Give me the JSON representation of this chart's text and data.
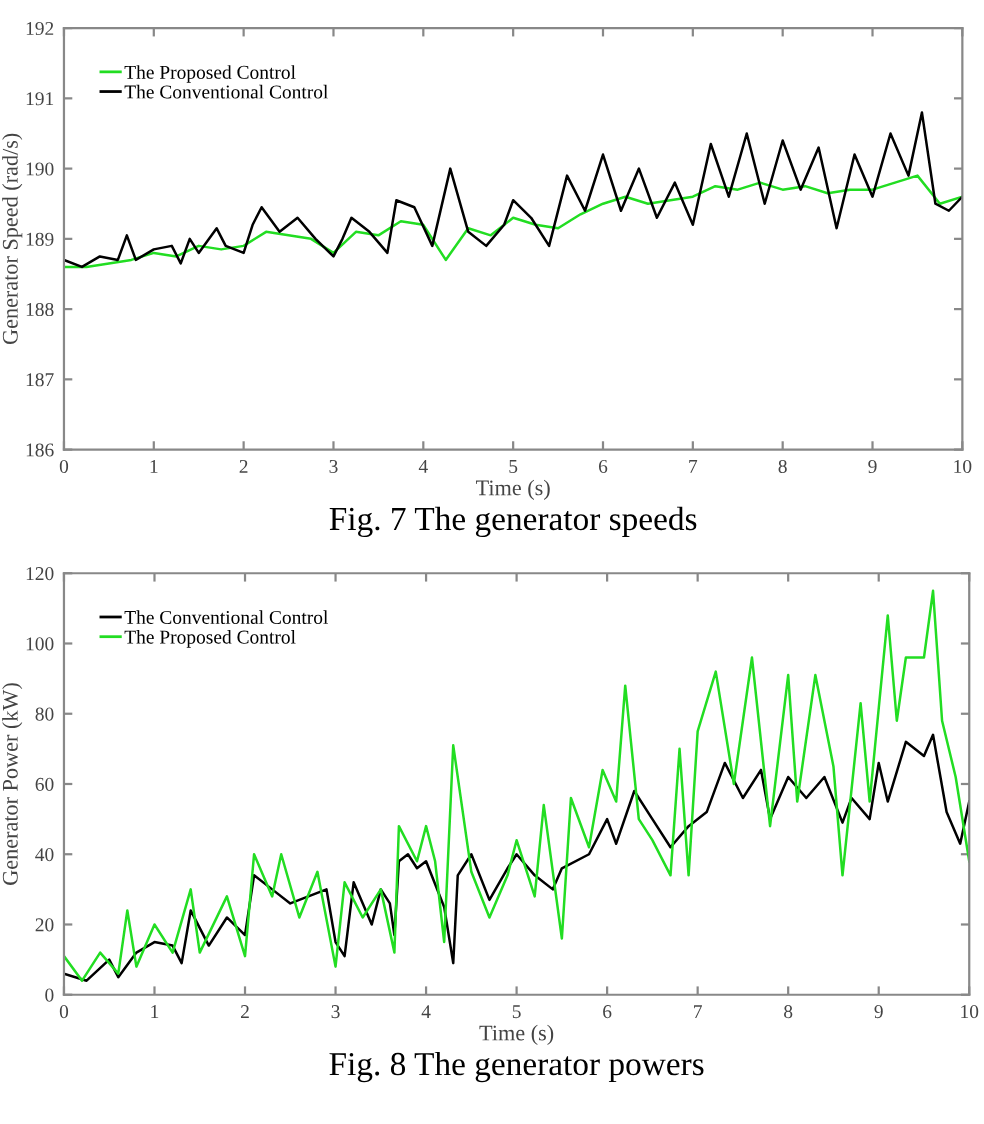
{
  "chart_data": [
    {
      "type": "line",
      "title": "Fig. 7 The generator speeds",
      "xlabel": "Time (s)",
      "ylabel": "Generator Speed (rad/s)",
      "xlim": [
        0,
        10
      ],
      "ylim": [
        186,
        192
      ],
      "xticks": [
        0,
        1,
        2,
        3,
        4,
        5,
        6,
        7,
        8,
        9,
        10
      ],
      "yticks": [
        186,
        187,
        188,
        189,
        190,
        191,
        192
      ],
      "grid": false,
      "legend": "top left",
      "marker": "none",
      "line_style": "solid",
      "series": [
        {
          "name": "The Proposed Control",
          "color": "#22dd22",
          "x": [
            0,
            0.25,
            0.5,
            0.75,
            1,
            1.25,
            1.5,
            1.75,
            2,
            2.25,
            2.5,
            2.75,
            3,
            3.25,
            3.5,
            3.75,
            4,
            4.25,
            4.5,
            4.75,
            5,
            5.25,
            5.5,
            5.75,
            6,
            6.25,
            6.5,
            6.75,
            7,
            7.25,
            7.5,
            7.75,
            8,
            8.25,
            8.5,
            8.75,
            9,
            9.25,
            9.5,
            9.75,
            10
          ],
          "values": [
            188.6,
            188.6,
            188.65,
            188.7,
            188.8,
            188.75,
            188.9,
            188.85,
            188.9,
            189.1,
            189.05,
            189.0,
            188.8,
            189.1,
            189.05,
            189.25,
            189.2,
            188.7,
            189.15,
            189.05,
            189.3,
            189.2,
            189.15,
            189.35,
            189.5,
            189.6,
            189.5,
            189.55,
            189.6,
            189.75,
            189.7,
            189.8,
            189.7,
            189.75,
            189.65,
            189.7,
            189.7,
            189.8,
            189.9,
            189.5,
            189.6
          ]
        },
        {
          "name": "The Conventional Control",
          "color": "#000000",
          "x": [
            0,
            0.2,
            0.4,
            0.6,
            0.7,
            0.8,
            1.0,
            1.2,
            1.3,
            1.4,
            1.5,
            1.7,
            1.8,
            2.0,
            2.1,
            2.2,
            2.4,
            2.6,
            2.8,
            3.0,
            3.1,
            3.2,
            3.4,
            3.6,
            3.7,
            3.9,
            4.1,
            4.3,
            4.5,
            4.7,
            4.9,
            5.0,
            5.2,
            5.4,
            5.6,
            5.8,
            6.0,
            6.2,
            6.4,
            6.6,
            6.8,
            7.0,
            7.2,
            7.4,
            7.6,
            7.8,
            8.0,
            8.2,
            8.4,
            8.6,
            8.8,
            9.0,
            9.2,
            9.4,
            9.55,
            9.7,
            9.85,
            10
          ],
          "values": [
            188.7,
            188.6,
            188.75,
            188.7,
            189.05,
            188.7,
            188.85,
            188.9,
            188.65,
            189.0,
            188.8,
            189.15,
            188.9,
            188.8,
            189.2,
            189.45,
            189.1,
            189.3,
            189.0,
            188.75,
            189.0,
            189.3,
            189.1,
            188.8,
            189.55,
            189.45,
            188.9,
            190.0,
            189.1,
            188.9,
            189.2,
            189.55,
            189.3,
            188.9,
            189.9,
            189.4,
            190.2,
            189.4,
            190.0,
            189.3,
            189.8,
            189.2,
            190.35,
            189.6,
            190.5,
            189.5,
            190.4,
            189.7,
            190.3,
            189.15,
            190.2,
            189.6,
            190.5,
            189.9,
            190.8,
            189.5,
            189.4,
            189.6
          ]
        }
      ]
    },
    {
      "type": "line",
      "title": "Fig. 8 The generator powers",
      "xlabel": "Time (s)",
      "ylabel": "Generator Power (kW)",
      "xlim": [
        0,
        10
      ],
      "ylim": [
        0,
        120
      ],
      "xticks": [
        0,
        1,
        2,
        3,
        4,
        5,
        6,
        7,
        8,
        9,
        10
      ],
      "yticks": [
        0,
        20,
        40,
        60,
        80,
        100,
        120
      ],
      "grid": false,
      "legend": "top left",
      "marker": "none",
      "line_style": "solid",
      "series": [
        {
          "name": "The Conventional Control",
          "color": "#000000",
          "x": [
            0,
            0.25,
            0.5,
            0.6,
            0.8,
            1.0,
            1.2,
            1.3,
            1.4,
            1.6,
            1.8,
            2.0,
            2.1,
            2.3,
            2.5,
            2.7,
            2.9,
            3.0,
            3.1,
            3.2,
            3.4,
            3.5,
            3.6,
            3.65,
            3.7,
            3.8,
            3.9,
            4.0,
            4.2,
            4.3,
            4.35,
            4.5,
            4.7,
            4.9,
            5.0,
            5.2,
            5.4,
            5.5,
            5.8,
            6.0,
            6.1,
            6.3,
            6.5,
            6.7,
            6.9,
            7.1,
            7.3,
            7.5,
            7.7,
            7.8,
            8.0,
            8.2,
            8.4,
            8.6,
            8.7,
            8.9,
            9.0,
            9.1,
            9.3,
            9.5,
            9.6,
            9.75,
            9.9,
            10
          ],
          "values": [
            6,
            4,
            10,
            5,
            12,
            15,
            14,
            9,
            24,
            14,
            22,
            17,
            34,
            30,
            26,
            28,
            30,
            15,
            11,
            32,
            20,
            30,
            26,
            17,
            38,
            40,
            36,
            38,
            25,
            9,
            34,
            40,
            27,
            36,
            40,
            34,
            30,
            36,
            40,
            50,
            43,
            58,
            50,
            42,
            48,
            52,
            66,
            56,
            64,
            50,
            62,
            56,
            62,
            49,
            56,
            50,
            66,
            55,
            72,
            68,
            74,
            52,
            43,
            55
          ]
        },
        {
          "name": "The Proposed Control",
          "color": "#22dd22",
          "x": [
            0,
            0.2,
            0.4,
            0.6,
            0.7,
            0.8,
            1.0,
            1.2,
            1.4,
            1.5,
            1.8,
            2.0,
            2.1,
            2.3,
            2.4,
            2.6,
            2.8,
            3.0,
            3.1,
            3.3,
            3.5,
            3.65,
            3.7,
            3.9,
            4.0,
            4.1,
            4.2,
            4.3,
            4.5,
            4.7,
            4.9,
            5.0,
            5.2,
            5.3,
            5.5,
            5.6,
            5.8,
            5.95,
            6.1,
            6.2,
            6.35,
            6.5,
            6.7,
            6.8,
            6.9,
            7.0,
            7.2,
            7.4,
            7.6,
            7.8,
            8.0,
            8.1,
            8.3,
            8.5,
            8.6,
            8.8,
            8.9,
            9.1,
            9.2,
            9.3,
            9.5,
            9.6,
            9.7,
            9.85,
            10
          ],
          "values": [
            11,
            4,
            12,
            6,
            24,
            8,
            20,
            12,
            30,
            12,
            28,
            11,
            40,
            28,
            40,
            22,
            35,
            8,
            32,
            22,
            30,
            12,
            48,
            38,
            48,
            38,
            15,
            71,
            35,
            22,
            34,
            44,
            28,
            54,
            16,
            56,
            42,
            64,
            55,
            88,
            50,
            44,
            34,
            70,
            34,
            75,
            92,
            60,
            96,
            48,
            91,
            55,
            91,
            65,
            34,
            83,
            55,
            108,
            78,
            96,
            96,
            115,
            78,
            62,
            38
          ]
        }
      ]
    }
  ]
}
